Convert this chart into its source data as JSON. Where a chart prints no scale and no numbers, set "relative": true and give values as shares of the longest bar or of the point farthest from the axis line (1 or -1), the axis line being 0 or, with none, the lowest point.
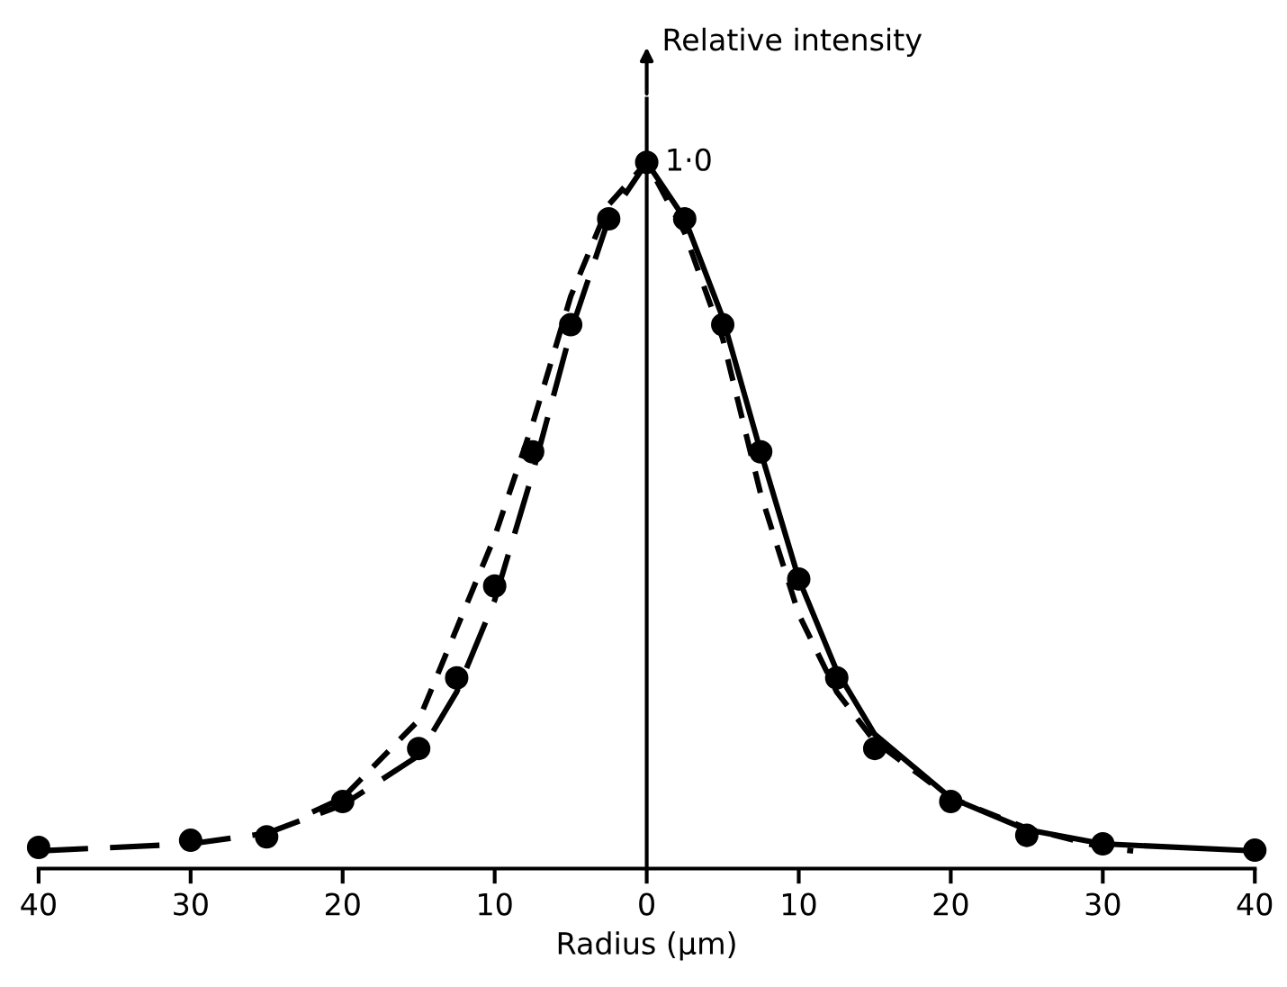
{
  "chart_data": {
    "type": "line",
    "relative": true,
    "xlabel": "Radius (μm)",
    "ylabel": "Relative intensity",
    "xlim": [
      -40,
      40
    ],
    "xticks": [
      {
        "value": -40,
        "label": "40"
      },
      {
        "value": -30,
        "label": "30"
      },
      {
        "value": -20,
        "label": "20"
      },
      {
        "value": -10,
        "label": "10"
      },
      0,
      10,
      20,
      30,
      40
    ],
    "annotations": [
      {
        "text": "1·0",
        "x": 0,
        "y": 1.0
      }
    ],
    "legend": false,
    "series": [
      {
        "type": "scatter",
        "marker": "circle",
        "color": "#000000",
        "x": [
          -40,
          -30,
          -25,
          -20,
          -15,
          -12.5,
          -10,
          -7.5,
          -5,
          -2.5,
          0,
          2.5,
          5,
          7.5,
          10,
          12.5,
          15,
          20,
          25,
          30,
          40
        ],
        "values": [
          0.03,
          0.04,
          0.045,
          0.095,
          0.17,
          0.27,
          0.4,
          0.59,
          0.77,
          0.92,
          1.0,
          0.92,
          0.77,
          0.59,
          0.41,
          0.27,
          0.17,
          0.095,
          0.047,
          0.035,
          0.026
        ]
      },
      {
        "line_style": "dashed",
        "color": "#000000",
        "x": [
          -40,
          -30,
          -25,
          -20,
          -15,
          -12.5,
          -10,
          -7.5,
          -5,
          -2.5,
          0
        ],
        "values": [
          0.025,
          0.035,
          0.05,
          0.09,
          0.16,
          0.25,
          0.38,
          0.56,
          0.76,
          0.92,
          1.0
        ]
      },
      {
        "line_style": "solid",
        "color": "#000000",
        "x": [
          0,
          2.5,
          5,
          7.5,
          10,
          12.5,
          15,
          20,
          25,
          30,
          40
        ],
        "values": [
          1.0,
          0.92,
          0.78,
          0.59,
          0.41,
          0.28,
          0.19,
          0.1,
          0.055,
          0.035,
          0.025
        ]
      },
      {
        "line_style": "dotted",
        "color": "#000000",
        "x": [
          -22,
          -20,
          -15,
          -10,
          -7.5,
          -5,
          -2.5,
          0,
          2.5,
          5,
          7.5,
          10,
          12.5,
          15,
          20,
          25,
          30,
          32
        ],
        "values": [
          0.08,
          0.1,
          0.21,
          0.47,
          0.63,
          0.81,
          0.94,
          1.0,
          0.9,
          0.75,
          0.53,
          0.36,
          0.25,
          0.18,
          0.1,
          0.057,
          0.03,
          0.025
        ]
      }
    ]
  }
}
